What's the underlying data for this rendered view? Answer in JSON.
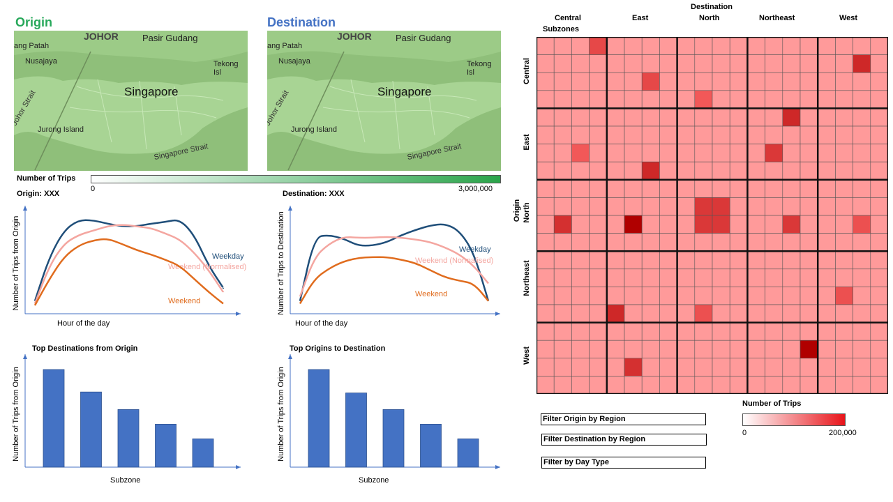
{
  "origin_panel": {
    "title": "Origin",
    "map_labels": [
      "JOHOR",
      "Pasir Gudang",
      "ang Patah",
      "Nusajaya",
      "Singapore",
      "Tekong Isl",
      "Johor Strait",
      "Jurong Island",
      "Singapore Strait"
    ]
  },
  "destination_panel": {
    "title": "Destination",
    "map_labels": [
      "JOHOR",
      "Pasir Gudang",
      "ang Patah",
      "Nusajaya",
      "Singapore",
      "Tekong Isl",
      "Johor Strait",
      "Jurong Island",
      "Singapore Strait"
    ]
  },
  "trips_legend": {
    "title": "Number of Trips",
    "min_label": "0",
    "max_label": "3,000,000",
    "color_low": "#ffffff",
    "color_high": "#2aa44a"
  },
  "colors": {
    "weekday": "#1f4e79",
    "weekend_normalised": "#f4a6a0",
    "weekend": "#e06c1e",
    "bar": "#4472c4",
    "origin_title": "#27a85a",
    "destination_title": "#4472c4",
    "heat_base": "#ff9a9a"
  },
  "line_charts": [
    {
      "title": "Origin: XXX",
      "ylabel": "Number of Trips from Origin",
      "xlabel": "Hour of the day",
      "series": [
        {
          "name": "Weekday",
          "values": [
            0.05,
            0.55,
            0.85,
            0.97,
            0.97,
            0.93,
            0.9,
            0.9,
            0.93,
            0.95,
            0.98,
            0.8,
            0.45,
            0.2
          ]
        },
        {
          "name": "Weekend (Normalised)",
          "values": [
            0.02,
            0.45,
            0.7,
            0.8,
            0.85,
            0.9,
            0.92,
            0.9,
            0.88,
            0.82,
            0.75,
            0.6,
            0.4,
            0.15
          ]
        },
        {
          "name": "Weekend",
          "values": [
            0.0,
            0.3,
            0.55,
            0.68,
            0.74,
            0.76,
            0.7,
            0.63,
            0.58,
            0.52,
            0.45,
            0.3,
            0.15,
            0.02
          ]
        }
      ]
    },
    {
      "title": "Destination: XXX",
      "ylabel": "Number of Trips to Destination",
      "xlabel": "Hour of the day",
      "series": [
        {
          "name": "Weekday",
          "values": [
            0.05,
            0.78,
            0.8,
            0.76,
            0.68,
            0.68,
            0.72,
            0.8,
            0.86,
            0.91,
            0.93,
            0.85,
            0.6,
            0.05
          ]
        },
        {
          "name": "Weekend (Normalised)",
          "values": [
            0.1,
            0.55,
            0.7,
            0.78,
            0.77,
            0.77,
            0.78,
            0.77,
            0.75,
            0.72,
            0.66,
            0.58,
            0.45,
            0.25
          ]
        },
        {
          "name": "Weekend",
          "values": [
            0.02,
            0.3,
            0.42,
            0.5,
            0.54,
            0.55,
            0.55,
            0.52,
            0.48,
            0.4,
            0.32,
            0.28,
            0.25,
            0.05
          ]
        }
      ]
    }
  ],
  "bar_charts": [
    {
      "title": "Top Destinations from Origin",
      "ylabel": "Number of Trips from Origin",
      "xlabel": "Subzone",
      "values": [
        100,
        77,
        59,
        44,
        29
      ]
    },
    {
      "title": "Top Origins to Destination",
      "ylabel": "Number of Trips from Origin",
      "xlabel": "Subzone",
      "values": [
        100,
        76,
        59,
        44,
        29
      ]
    }
  ],
  "matrix": {
    "top_title": "Destination",
    "side_title": "Origin",
    "regions": [
      "Central",
      "East",
      "North",
      "Northeast",
      "West"
    ],
    "first_col_label": "Central Subzones",
    "subzones_per_region": 4,
    "highlights": [
      {
        "row": 0,
        "col": 3,
        "level": 0.55
      },
      {
        "row": 1,
        "col": 18,
        "level": 0.75
      },
      {
        "row": 2,
        "col": 6,
        "level": 0.55
      },
      {
        "row": 3,
        "col": 9,
        "level": 0.45
      },
      {
        "row": 4,
        "col": 14,
        "level": 0.75
      },
      {
        "row": 6,
        "col": 2,
        "level": 0.45
      },
      {
        "row": 6,
        "col": 13,
        "level": 0.65
      },
      {
        "row": 7,
        "col": 6,
        "level": 0.75
      },
      {
        "row": 9,
        "col": 9,
        "level": 0.65
      },
      {
        "row": 9,
        "col": 10,
        "level": 0.65
      },
      {
        "row": 10,
        "col": 1,
        "level": 0.7
      },
      {
        "row": 10,
        "col": 5,
        "level": 1.0
      },
      {
        "row": 10,
        "col": 9,
        "level": 0.65
      },
      {
        "row": 10,
        "col": 10,
        "level": 0.65
      },
      {
        "row": 10,
        "col": 14,
        "level": 0.65
      },
      {
        "row": 10,
        "col": 18,
        "level": 0.5
      },
      {
        "row": 14,
        "col": 17,
        "level": 0.5
      },
      {
        "row": 15,
        "col": 4,
        "level": 0.75
      },
      {
        "row": 15,
        "col": 9,
        "level": 0.5
      },
      {
        "row": 17,
        "col": 15,
        "level": 1.0
      },
      {
        "row": 18,
        "col": 5,
        "level": 0.7
      }
    ],
    "legend": {
      "title": "Number of Trips",
      "min_label": "0",
      "max_label": "200,000"
    }
  },
  "filters": [
    {
      "label": "Filter Origin by Region"
    },
    {
      "label": "Filter Destination by Region"
    },
    {
      "label": "Filter by Day Type"
    }
  ]
}
